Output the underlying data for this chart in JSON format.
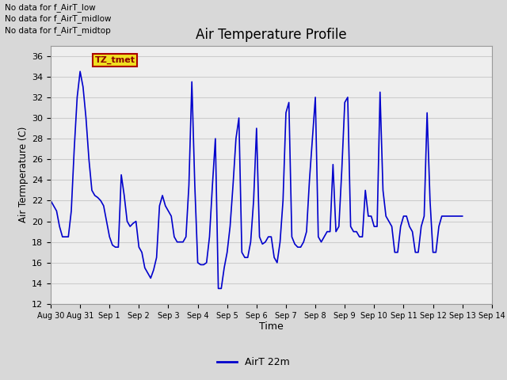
{
  "title": "Air Temperature Profile",
  "xlabel": "Time",
  "ylabel": "Air Termperature (C)",
  "ylim": [
    12,
    37
  ],
  "yticks": [
    12,
    14,
    16,
    18,
    20,
    22,
    24,
    26,
    28,
    30,
    32,
    34,
    36
  ],
  "line_color": "#0000cc",
  "line_width": 1.2,
  "legend_label": "AirT 22m",
  "text_lines": [
    "No data for f_AirT_low",
    "No data for f_AirT_midlow",
    "No data for f_AirT_midtop"
  ],
  "tz_label": "TZ_tmet",
  "x_tick_labels": [
    "Aug 30",
    "Aug 31",
    "Sep 1",
    "Sep 2",
    "Sep 3",
    "Sep 4",
    "Sep 5",
    "Sep 6",
    "Sep 7",
    "Sep 8",
    "Sep 9",
    "Sep 10",
    "Sep 11",
    "Sep 12",
    "Sep 13",
    "Sep 14"
  ],
  "time_data": [
    0.0,
    0.1,
    0.2,
    0.3,
    0.4,
    0.5,
    0.6,
    0.7,
    0.8,
    0.9,
    1.0,
    1.1,
    1.2,
    1.3,
    1.4,
    1.5,
    1.6,
    1.7,
    1.8,
    1.9,
    2.0,
    2.1,
    2.2,
    2.3,
    2.4,
    2.5,
    2.6,
    2.7,
    2.8,
    2.9,
    3.0,
    3.1,
    3.2,
    3.3,
    3.4,
    3.5,
    3.6,
    3.7,
    3.8,
    3.9,
    4.0,
    4.1,
    4.2,
    4.3,
    4.4,
    4.5,
    4.6,
    4.7,
    4.8,
    4.9,
    5.0,
    5.1,
    5.2,
    5.3,
    5.4,
    5.5,
    5.6,
    5.7,
    5.8,
    5.9,
    6.0,
    6.1,
    6.2,
    6.3,
    6.4,
    6.5,
    6.6,
    6.7,
    6.8,
    6.9,
    7.0,
    7.1,
    7.2,
    7.3,
    7.4,
    7.5,
    7.6,
    7.7,
    7.8,
    7.9,
    8.0,
    8.1,
    8.2,
    8.3,
    8.4,
    8.5,
    8.6,
    8.7,
    8.8,
    8.9,
    9.0,
    9.1,
    9.2,
    9.3,
    9.4,
    9.5,
    9.6,
    9.7,
    9.8,
    9.9,
    10.0,
    10.1,
    10.2,
    10.3,
    10.4,
    10.5,
    10.6,
    10.7,
    10.8,
    10.9,
    11.0,
    11.1,
    11.2,
    11.3,
    11.4,
    11.5,
    11.6,
    11.7,
    11.8,
    11.9,
    12.0,
    12.1,
    12.2,
    12.3,
    12.4,
    12.5,
    12.6,
    12.7,
    12.8,
    12.9,
    13.0,
    13.1,
    13.2,
    13.3,
    13.4,
    13.5,
    13.6,
    13.7,
    13.8,
    13.9,
    14.0
  ],
  "temp_data": [
    22.0,
    21.5,
    21.0,
    19.5,
    18.5,
    18.5,
    18.5,
    21.0,
    27.0,
    32.0,
    34.5,
    33.0,
    30.0,
    26.0,
    23.0,
    22.5,
    22.3,
    22.0,
    21.5,
    20.0,
    18.5,
    17.7,
    17.5,
    17.5,
    24.5,
    22.5,
    20.0,
    19.5,
    19.8,
    20.0,
    17.5,
    17.0,
    15.5,
    15.0,
    14.5,
    15.3,
    16.5,
    21.5,
    22.5,
    21.5,
    21.0,
    20.5,
    18.5,
    18.0,
    18.0,
    18.0,
    18.5,
    23.5,
    33.5,
    23.5,
    16.0,
    15.8,
    15.8,
    16.0,
    18.5,
    23.5,
    28.0,
    13.5,
    13.5,
    15.5,
    17.0,
    19.5,
    23.5,
    28.0,
    30.0,
    17.0,
    16.5,
    16.5,
    18.0,
    22.0,
    29.0,
    18.5,
    17.8,
    18.0,
    18.5,
    18.5,
    16.5,
    16.0,
    18.0,
    22.0,
    30.5,
    31.5,
    18.5,
    17.8,
    17.5,
    17.5,
    18.0,
    19.0,
    24.0,
    28.0,
    32.0,
    18.5,
    18.0,
    18.5,
    19.0,
    19.0,
    25.5,
    19.0,
    19.5,
    25.0,
    31.5,
    32.0,
    19.5,
    19.0,
    19.0,
    18.5,
    18.5,
    23.0,
    20.5,
    20.5,
    19.5,
    19.5,
    32.5,
    23.0,
    20.5,
    20.0,
    19.5,
    17.0,
    17.0,
    19.5,
    20.5,
    20.5,
    19.5,
    19.0,
    17.0,
    17.0,
    19.5,
    20.5,
    30.5,
    22.0,
    17.0,
    17.0,
    19.5,
    20.5,
    20.5,
    20.5,
    20.5,
    20.5,
    20.5,
    20.5,
    20.5
  ]
}
